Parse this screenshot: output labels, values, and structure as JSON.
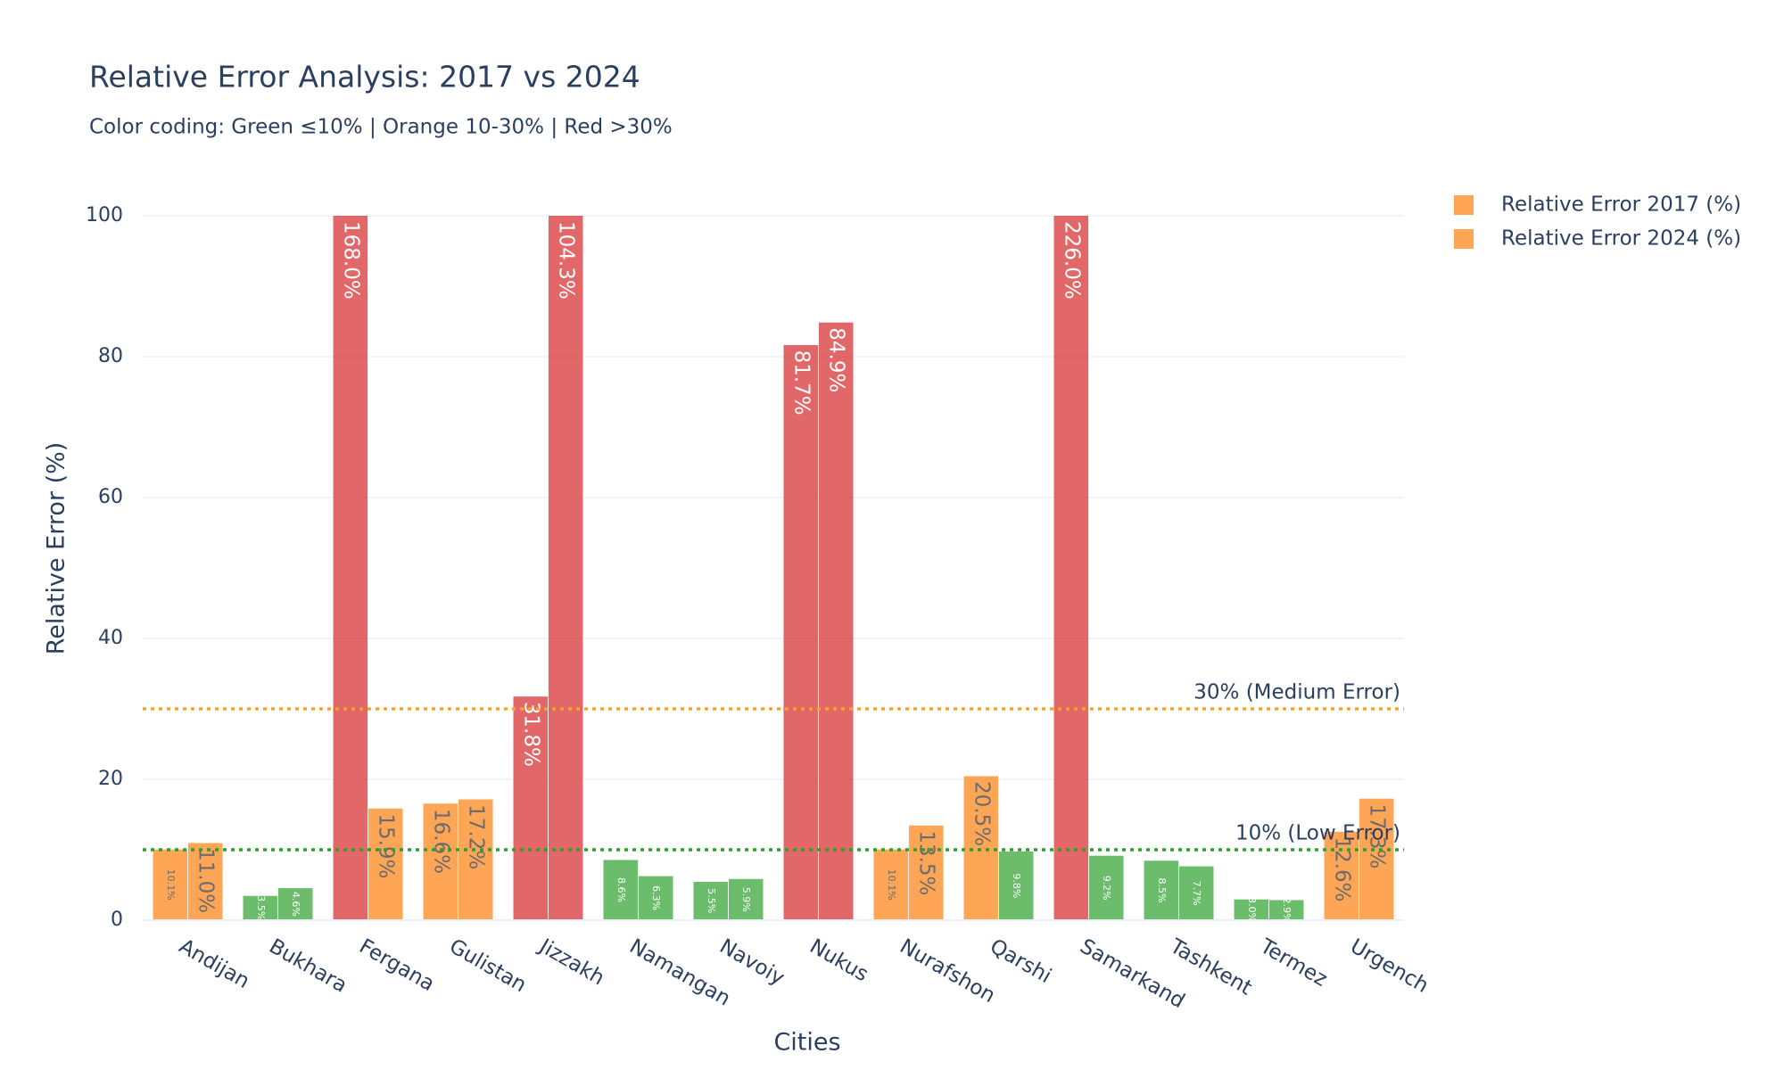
{
  "chart_data": {
    "type": "bar",
    "title": "Relative Error Analysis: 2017 vs 2024",
    "subtitle": "Color coding: Green ≤10% | Orange 10-30% | Red >30%",
    "x_label": "Cities",
    "y_label": "Relative Error (%)",
    "categories": [
      "Andijan",
      "Bukhara",
      "Fergana",
      "Gulistan",
      "Jizzakh",
      "Namangan",
      "Navoiy",
      "Nukus",
      "Nurafshon",
      "Qarshi",
      "Samarkand",
      "Tashkent",
      "Termez",
      "Urgench"
    ],
    "series": [
      {
        "name": "Relative Error 2017 (%)",
        "color": "#ff7f0e",
        "values": [
          10.1,
          3.5,
          168.0,
          16.6,
          31.8,
          8.6,
          5.5,
          81.7,
          10.1,
          20.5,
          226.0,
          8.5,
          3.0,
          12.6
        ],
        "value_labels": [
          "10.1%",
          "3.5%",
          "168.0%",
          "16.6%",
          "31.8%",
          "8.6%",
          "5.5%",
          "81.7%",
          "10.1%",
          "20.5%",
          "226.0%",
          "8.5%",
          "3.0%",
          "12.6%"
        ],
        "colors": [
          "#ff7f0e",
          "#2ca02c",
          "#d62728",
          "#ff7f0e",
          "#d62728",
          "#2ca02c",
          "#2ca02c",
          "#d62728",
          "#ff7f0e",
          "#ff7f0e",
          "#d62728",
          "#2ca02c",
          "#2ca02c",
          "#ff7f0e"
        ]
      },
      {
        "name": "Relative Error 2024 (%)",
        "color": "#ff7f0e",
        "values": [
          11.0,
          4.6,
          15.9,
          17.2,
          104.3,
          6.3,
          5.9,
          84.9,
          13.5,
          9.8,
          9.2,
          7.7,
          2.9,
          17.3
        ],
        "value_labels": [
          "11.0%",
          "4.6%",
          "15.9%",
          "17.2%",
          "104.3%",
          "6.3%",
          "5.9%",
          "84.9%",
          "13.5%",
          "9.8%",
          "9.2%",
          "7.7%",
          "2.9%",
          "17.3%"
        ],
        "colors": [
          "#ff7f0e",
          "#2ca02c",
          "#ff7f0e",
          "#ff7f0e",
          "#d62728",
          "#2ca02c",
          "#2ca02c",
          "#d62728",
          "#ff7f0e",
          "#2ca02c",
          "#2ca02c",
          "#2ca02c",
          "#2ca02c",
          "#ff7f0e"
        ]
      }
    ],
    "reference_lines": [
      {
        "value": 30,
        "label": "30% (Medium Error)",
        "color": "#f5a623"
      },
      {
        "value": 10,
        "label": "10% (Low Error)",
        "color": "#2ca02c"
      }
    ],
    "ylim": [
      0,
      100
    ],
    "yticks": [
      0,
      20,
      40,
      60,
      80,
      100
    ],
    "grid": true,
    "legend": "top-right"
  }
}
